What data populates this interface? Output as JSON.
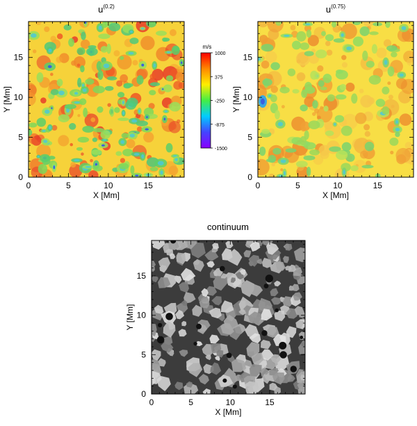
{
  "chart_data": [
    {
      "type": "heatmap",
      "title": "u",
      "title_superscript": "(0.2)",
      "xlabel": "X [Mm]",
      "ylabel": "Y [Mm]",
      "xlim": [
        0,
        19.5
      ],
      "ylim": [
        0,
        19.5
      ],
      "xticks": [
        0,
        5,
        10,
        15
      ],
      "yticks": [
        0,
        5,
        10,
        15
      ],
      "colormap": "rainbow",
      "colorbar": {
        "unit": "m/s",
        "range": [
          -1500,
          1000
        ],
        "ticks": [
          1000,
          375,
          -250,
          -875,
          -1500
        ],
        "colors": [
          "#ff0000",
          "#ff8800",
          "#ffee00",
          "#44ee44",
          "#00ccff",
          "#4444ff",
          "#8800ff"
        ]
      }
    },
    {
      "type": "heatmap",
      "title": "u",
      "title_superscript": "(0.75)",
      "xlabel": "X [Mm]",
      "ylabel": "Y [Mm]",
      "xlim": [
        0,
        19.5
      ],
      "ylim": [
        0,
        19.5
      ],
      "xticks": [
        0,
        5,
        10,
        15
      ],
      "yticks": [
        0,
        5,
        10,
        15
      ],
      "colormap": "rainbow"
    },
    {
      "type": "heatmap",
      "title": "continuum",
      "xlabel": "X [Mm]",
      "ylabel": "Y [Mm]",
      "xlim": [
        0,
        19.5
      ],
      "ylim": [
        0,
        19.5
      ],
      "xticks": [
        0,
        5,
        10,
        15
      ],
      "yticks": [
        0,
        5,
        10,
        15
      ],
      "colormap": "grayscale"
    }
  ]
}
